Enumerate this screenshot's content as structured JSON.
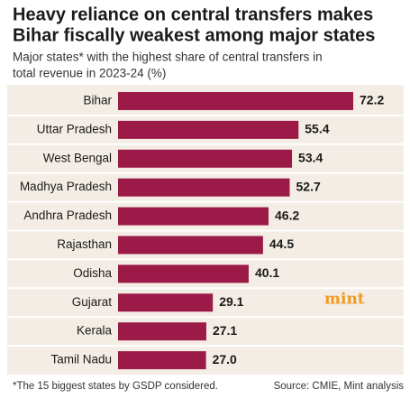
{
  "chart_data": {
    "type": "bar",
    "orientation": "horizontal",
    "title": [
      "Heavy reliance on central transfers makes",
      "Bihar fiscally weakest among major states"
    ],
    "subtitle": [
      "Major states* with the highest share of central transfers in",
      "total revenue in 2023-24 (%)"
    ],
    "categories": [
      "Bihar",
      "Uttar Pradesh",
      "West Bengal",
      "Madhya Pradesh",
      "Andhra Pradesh",
      "Rajasthan",
      "Odisha",
      "Gujarat",
      "Kerala",
      "Tamil Nadu"
    ],
    "values": [
      72.2,
      55.4,
      53.4,
      52.7,
      46.2,
      44.5,
      40.1,
      29.1,
      27.1,
      27.0
    ],
    "value_labels": [
      "72.2",
      "55.4",
      "53.4",
      "52.7",
      "46.2",
      "44.5",
      "40.1",
      "29.1",
      "27.1",
      "27.0"
    ],
    "color": "#9c1a48",
    "footnote": "*The 15 biggest states by GSDP considered.",
    "source": "Source: CMIE, Mint analysis",
    "logo": "mint"
  }
}
